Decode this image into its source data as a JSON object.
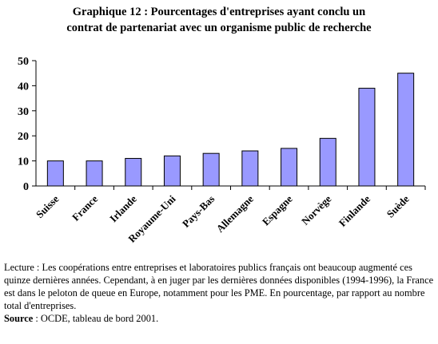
{
  "chart_data": {
    "type": "bar",
    "title_line1": "Graphique 12 : Pourcentages d'entreprises ayant conclu un",
    "title_line2": "contrat de partenariat avec un organisme public de recherche",
    "categories": [
      "Suisse",
      "France",
      "Irlande",
      "Royaume-Uni",
      "Pays-Bas",
      "Allemagne",
      "Espagne",
      "Norvège",
      "Finlande",
      "Suède"
    ],
    "values": [
      10,
      10,
      11,
      12,
      13,
      14,
      15,
      19,
      39,
      45
    ],
    "ylim": [
      0,
      50
    ],
    "yticks": [
      0,
      10,
      20,
      30,
      40,
      50
    ],
    "xlabel": "",
    "ylabel": "",
    "grid": false,
    "legend": "none",
    "bar_color": "#9999ff",
    "bar_border_color": "#000000"
  },
  "caption": {
    "lecture": "Lecture : Les coopérations entre entreprises et laboratoires publics français ont beaucoup augmenté ces quinze dernières années. Cependant, à en juger par les dernières données disponibles (1994-1996), la France est dans le peloton de queue en Europe, notamment pour les PME. En pourcentage, par rapport au nombre total d'entreprises.",
    "source_label": "Source",
    "source_text": " : OCDE, tableau de bord 2001."
  }
}
